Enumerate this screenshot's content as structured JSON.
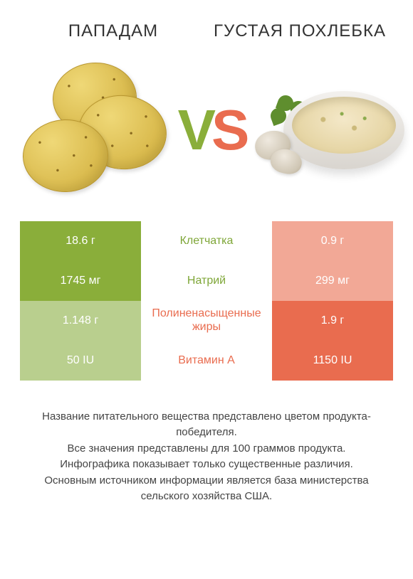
{
  "titles": {
    "left": "ПАПАДАМ",
    "right": "ГУСТАЯ ПОХЛЕБКА"
  },
  "vs": {
    "v": "V",
    "s": "S"
  },
  "colors": {
    "green_full": "#8aae3a",
    "green_pale": "#b9cf8e",
    "orange_full": "#e96c4f",
    "orange_pale": "#f2a896",
    "text": "#444444",
    "bg": "#ffffff"
  },
  "rows": [
    {
      "nutrient": "Клетчатка",
      "left": "18.6 г",
      "right": "0.9 г",
      "winner": "left"
    },
    {
      "nutrient": "Натрий",
      "left": "1745 мг",
      "right": "299 мг",
      "winner": "left"
    },
    {
      "nutrient": "Полиненасыщенные жиры",
      "left": "1.148 г",
      "right": "1.9 г",
      "winner": "right"
    },
    {
      "nutrient": "Витамин A",
      "left": "50 IU",
      "right": "1150 IU",
      "winner": "right"
    }
  ],
  "footer": {
    "l1": "Название питательного вещества представлено цветом продукта-победителя.",
    "l2": "Все значения представлены для 100 граммов продукта.",
    "l3": "Инфографика показывает только существенные различия.",
    "l4": "Основным источником информации является база министерства сельского хозяйства США."
  }
}
